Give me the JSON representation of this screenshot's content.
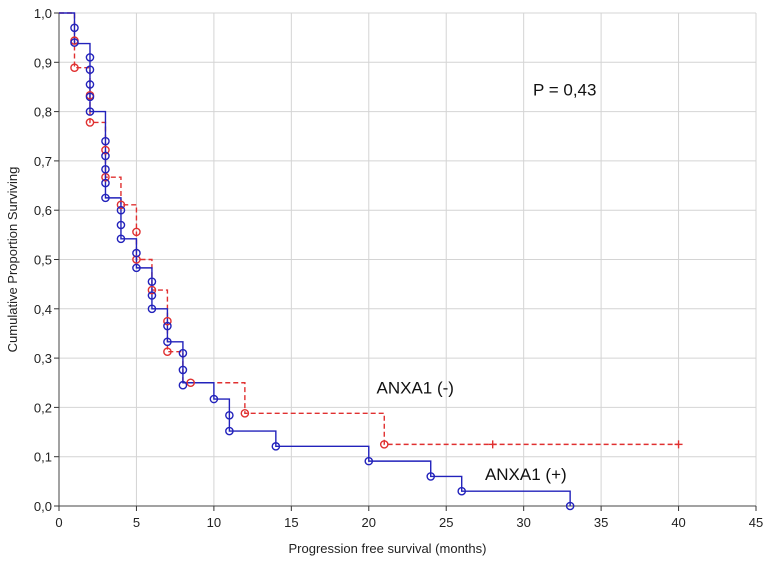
{
  "chart_data": {
    "type": "line",
    "title": "",
    "xlabel": "Progression free survival (months)",
    "ylabel": "Cumulative Proportion Surviving",
    "xlim": [
      0,
      45
    ],
    "ylim": [
      0.0,
      1.0
    ],
    "x_ticks": [
      "0",
      "5",
      "10",
      "15",
      "20",
      "25",
      "30",
      "35",
      "40",
      "45"
    ],
    "y_ticks": [
      "0,0",
      "0,1",
      "0,2",
      "0,3",
      "0,4",
      "0,5",
      "0,6",
      "0,7",
      "0,8",
      "0,9",
      "1,0"
    ],
    "grid": true,
    "pvalue_text": "P = 0,43",
    "series": [
      {
        "name": "ANXA1 (-)",
        "color": "#e03030",
        "style": "dashed",
        "steps": [
          [
            0,
            1.0
          ],
          [
            1,
            0.889
          ],
          [
            2,
            0.778
          ],
          [
            3,
            0.667
          ],
          [
            4,
            0.611
          ],
          [
            5,
            0.5
          ],
          [
            6,
            0.438
          ],
          [
            7,
            0.313
          ],
          [
            8,
            0.25
          ],
          [
            12,
            0.188
          ],
          [
            21,
            0.125
          ],
          [
            40,
            0.125
          ]
        ],
        "censored": [
          [
            1,
            0.944
          ],
          [
            1,
            0.889
          ],
          [
            2,
            0.833
          ],
          [
            2,
            0.778
          ],
          [
            3,
            0.722
          ],
          [
            3,
            0.667
          ],
          [
            4,
            0.611
          ],
          [
            5,
            0.556
          ],
          [
            5,
            0.5
          ],
          [
            6,
            0.438
          ],
          [
            7,
            0.375
          ],
          [
            7,
            0.313
          ],
          [
            8.5,
            0.25
          ],
          [
            12,
            0.188
          ],
          [
            21,
            0.125
          ]
        ],
        "plus_marks": [
          [
            28,
            0.125
          ],
          [
            40,
            0.125
          ]
        ]
      },
      {
        "name": "ANXA1 (+)",
        "color": "#2222bb",
        "style": "solid",
        "steps": [
          [
            0,
            1.0
          ],
          [
            1,
            0.938
          ],
          [
            2,
            0.8
          ],
          [
            3,
            0.625
          ],
          [
            4,
            0.542
          ],
          [
            5,
            0.483
          ],
          [
            6,
            0.4
          ],
          [
            7,
            0.333
          ],
          [
            8,
            0.25
          ],
          [
            10,
            0.217
          ],
          [
            11,
            0.152
          ],
          [
            14,
            0.121
          ],
          [
            20,
            0.091
          ],
          [
            24,
            0.06
          ],
          [
            26,
            0.03
          ],
          [
            33,
            0.0
          ]
        ],
        "censored": [
          [
            1,
            0.97
          ],
          [
            1,
            0.94
          ],
          [
            2,
            0.91
          ],
          [
            2,
            0.885
          ],
          [
            2,
            0.855
          ],
          [
            2,
            0.83
          ],
          [
            2,
            0.8
          ],
          [
            3,
            0.74
          ],
          [
            3,
            0.71
          ],
          [
            3,
            0.683
          ],
          [
            3,
            0.655
          ],
          [
            3,
            0.625
          ],
          [
            4,
            0.6
          ],
          [
            4,
            0.57
          ],
          [
            4,
            0.542
          ],
          [
            5,
            0.513
          ],
          [
            5,
            0.483
          ],
          [
            6,
            0.455
          ],
          [
            6,
            0.427
          ],
          [
            6,
            0.4
          ],
          [
            7,
            0.365
          ],
          [
            7,
            0.333
          ],
          [
            8,
            0.31
          ],
          [
            8,
            0.276
          ],
          [
            8,
            0.245
          ],
          [
            10,
            0.217
          ],
          [
            11,
            0.184
          ],
          [
            11,
            0.152
          ],
          [
            14,
            0.121
          ],
          [
            20,
            0.091
          ],
          [
            24,
            0.06
          ],
          [
            26,
            0.03
          ],
          [
            33,
            0.0
          ]
        ],
        "plus_marks": []
      }
    ],
    "series_labels": [
      {
        "text": "ANXA1 (-)",
        "x": 20.5,
        "y": 0.24
      },
      {
        "text": "ANXA1 (+)",
        "x": 27.5,
        "y": 0.065
      }
    ]
  }
}
